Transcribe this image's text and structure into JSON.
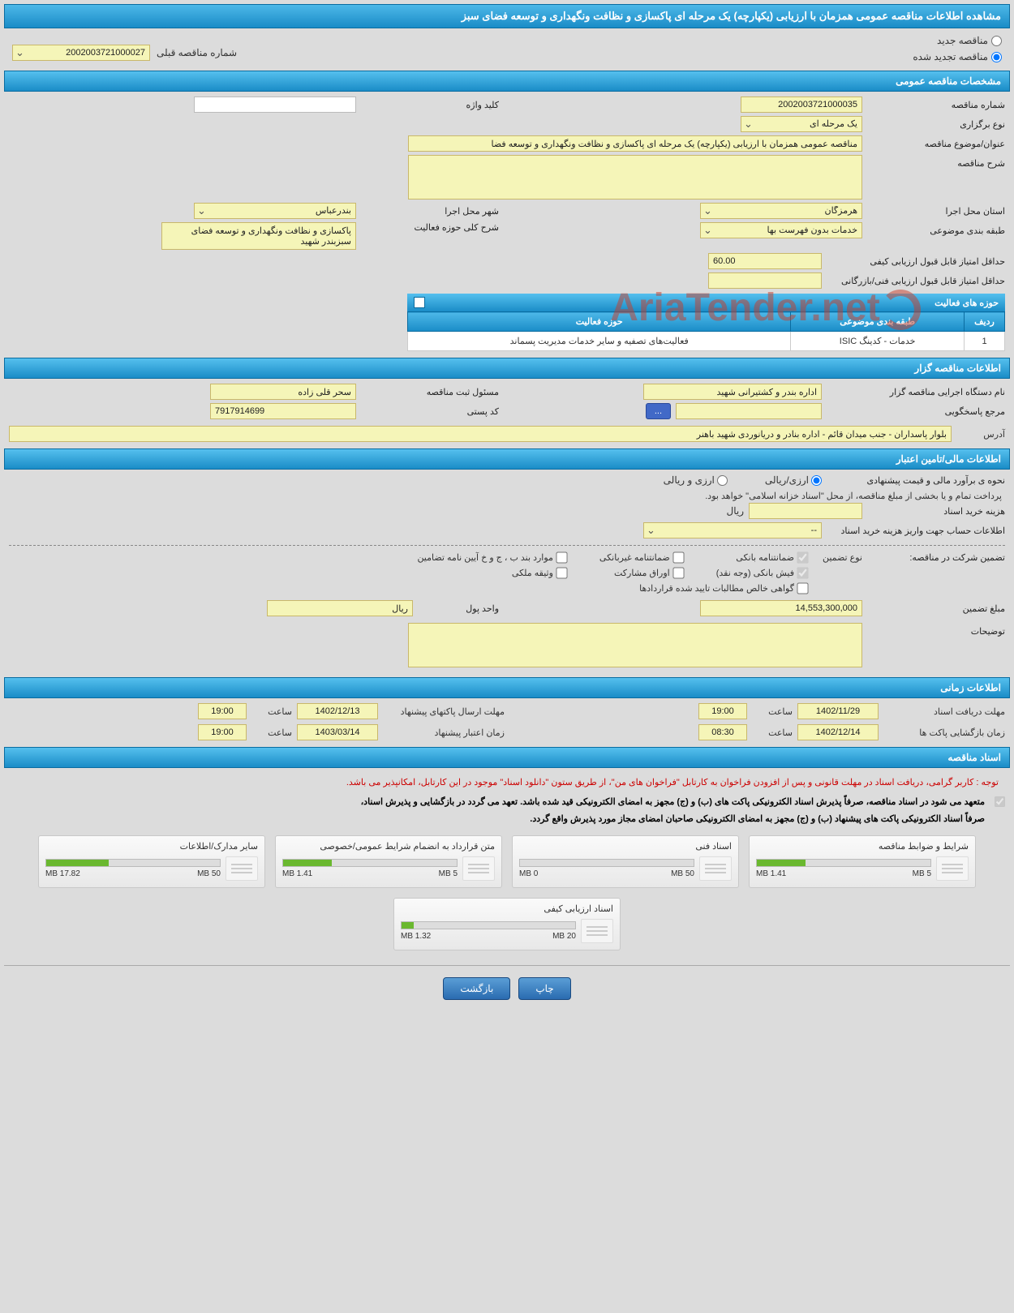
{
  "page_title": "مشاهده اطلاعات مناقصه عمومی همزمان با ارزیابی (یکپارچه) یک مرحله ای پاکسازی و نظافت ونگهداری و توسعه فضای سبز",
  "tender_mode": {
    "new_label": "مناقصه جدید",
    "renewed_label": "مناقصه تجدید شده",
    "selected": "renewed"
  },
  "prev_number": {
    "label": "شماره مناقصه قبلی",
    "value": "2002003721000027"
  },
  "sections": {
    "general": {
      "header": "مشخصات مناقصه عمومی",
      "tender_number": {
        "label": "شماره مناقصه",
        "value": "2002003721000035"
      },
      "keyword": {
        "label": "کلید واژه",
        "value": ""
      },
      "type": {
        "label": "نوع برگزاری",
        "value": "یک مرحله ای"
      },
      "subject": {
        "label": "عنوان/موضوع مناقصه",
        "value": "مناقصه عمومی همزمان با ارزیابی (یکپارچه) یک مرحله ای پاکسازی و نظافت ونگهداری و توسعه فضا"
      },
      "description": {
        "label": "شرح مناقصه",
        "value": ""
      },
      "province": {
        "label": "استان محل اجرا",
        "value": "هرمزگان"
      },
      "city": {
        "label": "شهر محل اجرا",
        "value": "بندرعباس"
      },
      "category": {
        "label": "طبقه بندی موضوعی",
        "value": "خدمات بدون فهرست بها"
      },
      "activity_desc": {
        "label": "شرح کلی حوزه فعالیت",
        "value": "پاکسازی و نظافت ونگهداری و توسعه فضای سبزبندر شهید"
      },
      "min_quality_score": {
        "label": "حداقل امتیاز قابل قبول ارزیابی کیفی",
        "value": "60.00"
      },
      "min_tech_score": {
        "label": "حداقل امتیاز قابل قبول ارزیابی فنی/بازرگانی",
        "value": ""
      },
      "activities": {
        "header": "حوزه های فعالیت",
        "columns": [
          "ردیف",
          "طبقه بندی موضوعی",
          "حوزه فعالیت"
        ],
        "rows": [
          [
            "1",
            "خدمات - کدینگ ISIC",
            "فعالیت‌های تصفیه و سایر خدمات مدیریت پسماند"
          ]
        ]
      }
    },
    "organizer": {
      "header": "اطلاعات مناقصه گزار",
      "org_name": {
        "label": "نام دستگاه اجرایی مناقصه گزار",
        "value": "اداره بندر و کشتیرانی شهید"
      },
      "registrar": {
        "label": "مسئول ثبت مناقصه",
        "value": "سحر قلی زاده"
      },
      "responder": {
        "label": "مرجع پاسخگویی",
        "value": ""
      },
      "responder_btn": "...",
      "postal": {
        "label": "کد پستی",
        "value": "7917914699"
      },
      "address": {
        "label": "آدرس",
        "value": "بلوار پاسداران - جنب میدان قائم - اداره بنادر و دریانوردی شهید باهنر"
      }
    },
    "financial": {
      "header": "اطلاعات مالی/تامین اعتبار",
      "estimate_method": {
        "label": "نحوه ی برآورد مالی و قیمت پیشنهادی",
        "opt1": "ارزی/ریالی",
        "opt2": "ارزی و ریالی"
      },
      "payment_note": "پرداخت تمام و یا بخشی از مبلغ مناقصه، از محل \"اسناد خزانه اسلامی\" خواهد بود.",
      "doc_cost": {
        "label": "هزینه خرید اسناد",
        "unit": "ریال",
        "value": ""
      },
      "account_info": {
        "label": "اطلاعات حساب جهت واریز هزینه خرید اسناد",
        "value": "--"
      },
      "guarantee": {
        "label": "تضمین شرکت در مناقصه:",
        "type_label": "نوع تضمین",
        "opts": {
          "bank_guarantee": "ضمانتنامه بانکی",
          "nonbank_guarantee": "ضمانتنامه غیربانکی",
          "bond_cases": "موارد بند ب ، ج و خ آیین نامه تضامین",
          "bank_receipt": "فیش بانکی (وجه نقد)",
          "participation_bonds": "اوراق مشارکت",
          "property_bond": "وثیقه ملکی",
          "net_receivables": "گواهی خالص مطالبات تایید شده قراردادها"
        },
        "checked": [
          "bank_guarantee",
          "bank_receipt"
        ]
      },
      "guarantee_amount": {
        "label": "مبلغ تضمین",
        "value": "14,553,300,000"
      },
      "currency_unit": {
        "label": "واحد پول",
        "value": "ریال"
      },
      "notes": {
        "label": "توضیحات",
        "value": ""
      }
    },
    "timing": {
      "header": "اطلاعات زمانی",
      "doc_receive": {
        "label": "مهلت دریافت اسناد",
        "date": "1402/11/29",
        "time_label": "ساعت",
        "time": "19:00"
      },
      "packet_send": {
        "label": "مهلت ارسال پاکتهای پیشنهاد",
        "date": "1402/12/13",
        "time_label": "ساعت",
        "time": "19:00"
      },
      "packet_open": {
        "label": "زمان بازگشایی پاکت ها",
        "date": "1402/12/14",
        "time_label": "ساعت",
        "time": "08:30"
      },
      "offer_validity": {
        "label": "زمان اعتبار پیشنهاد",
        "date": "1403/03/14",
        "time_label": "ساعت",
        "time": "19:00"
      }
    },
    "documents": {
      "header": "اسناد مناقصه",
      "notice_red": "توجه : کاربر گرامی، دریافت اسناد در مهلت قانونی و پس از افزودن فراخوان به کارتابل \"فراخوان های من\"، از طریق ستون \"دانلود اسناد\" موجود در این کارتابل، امکانپذیر می باشد.",
      "notice1": "متعهد می شود در اسناد مناقصه، صرفاً پذیرش اسناد الکترونیکی پاکت های (ب) و (ج) مجهز به امضای الکترونیکی قید شده باشد. تعهد می گردد در بازگشایی و پذیرش اسناد،",
      "notice2": "صرفاً اسناد الکترونیکی پاکت های پیشنهاد (ب) و (ج) مجهز به امضای الکترونیکی صاحبان امضای مجاز مورد پذیرش واقع گردد.",
      "cards": [
        {
          "title": "شرایط و ضوابط مناقصه",
          "used": "1.41 MB",
          "total": "5 MB",
          "pct": 28
        },
        {
          "title": "اسناد فنی",
          "used": "0 MB",
          "total": "50 MB",
          "pct": 0
        },
        {
          "title": "متن قرارداد به انضمام شرایط عمومی/خصوصی",
          "used": "1.41 MB",
          "total": "5 MB",
          "pct": 28
        },
        {
          "title": "سایر مدارک/اطلاعات",
          "used": "17.82 MB",
          "total": "50 MB",
          "pct": 36
        },
        {
          "title": "اسناد ارزیابی کیفی",
          "used": "1.32 MB",
          "total": "20 MB",
          "pct": 7
        }
      ]
    }
  },
  "footer": {
    "print": "چاپ",
    "back": "بازگشت"
  },
  "watermark": "AriaTender.net",
  "colors": {
    "header_bg_top": "#55c0ee",
    "header_bg_bottom": "#1a8cc7",
    "yellow_bg": "#f5f5b8",
    "page_bg": "#dcdcdc"
  }
}
